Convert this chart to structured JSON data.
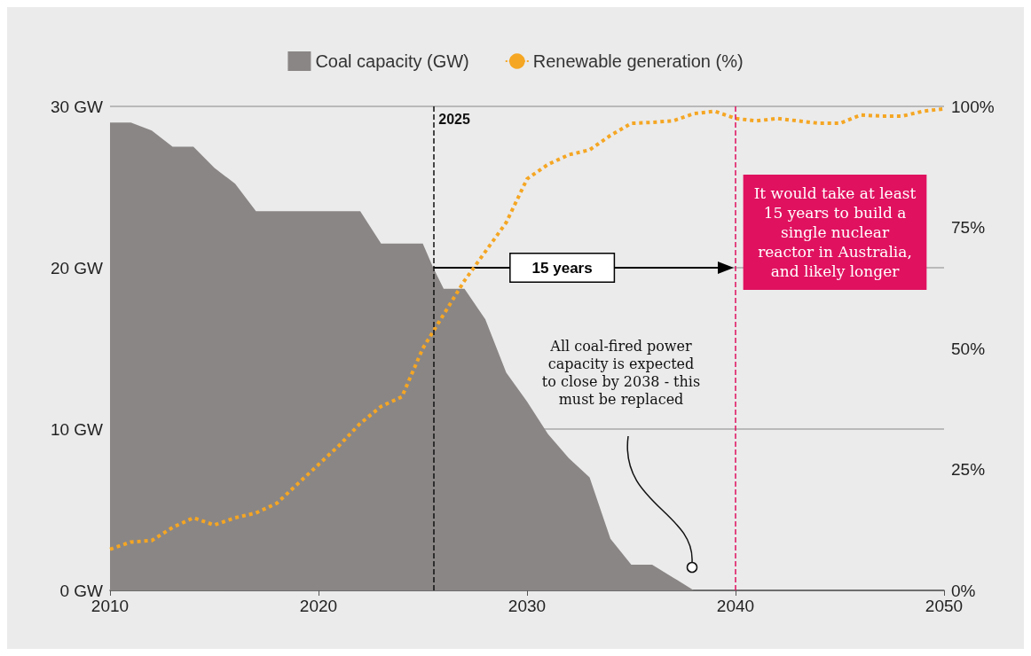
{
  "chart_data": {
    "type": "area",
    "legend": "top",
    "grid": "y",
    "xlim": [
      2010,
      2050
    ],
    "xticks": [
      2010,
      2020,
      2030,
      2040,
      2050
    ],
    "ylim": [
      0,
      30
    ],
    "yticks": [
      {
        "value": 0,
        "label": "0 GW"
      },
      {
        "value": 10,
        "label": "10 GW"
      },
      {
        "value": 20,
        "label": "20 GW"
      },
      {
        "value": 30,
        "label": "30 GW"
      }
    ],
    "y2lim": [
      0,
      100
    ],
    "y2ticks": [
      {
        "value": 0,
        "label": "0%"
      },
      {
        "value": 25,
        "label": "25%"
      },
      {
        "value": 50,
        "label": "50%"
      },
      {
        "value": 75,
        "label": "75%"
      },
      {
        "value": 100,
        "label": "100%"
      }
    ],
    "series": [
      {
        "name": "Coal capacity (GW)",
        "color": "#8a8685",
        "x": [
          2010,
          2011,
          2012,
          2013,
          2014,
          2015,
          2016,
          2017,
          2018,
          2019,
          2020,
          2021,
          2022,
          2023,
          2024,
          2025,
          2025.5,
          2026,
          2027,
          2028,
          2029,
          2030,
          2031,
          2032,
          2033,
          2034,
          2035,
          2036,
          2037,
          2038,
          2040,
          2045,
          2050
        ],
        "values": [
          29,
          29,
          28.5,
          27.5,
          27.5,
          26.2,
          25.2,
          23.5,
          23.5,
          23.5,
          23.5,
          23.5,
          23.5,
          21.5,
          21.5,
          21.5,
          20,
          18.7,
          18.7,
          16.8,
          13.5,
          11.7,
          9.7,
          8.2,
          7,
          3.2,
          1.6,
          1.6,
          0.8,
          0,
          0,
          0,
          0
        ]
      },
      {
        "name": "Renewable generation (%)",
        "type": "line",
        "axis": "y2",
        "color": "#f5a623",
        "line_style": "dotted",
        "marker": "none",
        "x": [
          2010,
          2011,
          2012,
          2013,
          2014,
          2015,
          2016,
          2017,
          2018,
          2019,
          2020,
          2021,
          2022,
          2023,
          2024,
          2025,
          2026,
          2027,
          2028,
          2029,
          2030,
          2031,
          2032,
          2033,
          2034,
          2035,
          2036,
          2037,
          2038,
          2039,
          2040,
          2041,
          2042,
          2043,
          2044,
          2045,
          2046,
          2047,
          2048,
          2049,
          2050
        ],
        "values": [
          8.5,
          10,
          10.3,
          13,
          15,
          13.5,
          15,
          16,
          18,
          22,
          26,
          30,
          34.5,
          38,
          40,
          50,
          57,
          64,
          70,
          76,
          85,
          88,
          90,
          91,
          94,
          96.5,
          96.7,
          97,
          98.5,
          99,
          97.5,
          97,
          97.5,
          97,
          96.5,
          96.5,
          98.2,
          98,
          98,
          99,
          99.5
        ]
      }
    ],
    "ref_lines": [
      {
        "axis": "x",
        "value": 2025.5,
        "label": "2025",
        "color": "#111111",
        "line_style": "dashed"
      },
      {
        "axis": "x",
        "value": 2040,
        "color": "#e0115f",
        "line_style": "dashed"
      }
    ],
    "annotations": [
      "15 years",
      "It would take at least\n15 years to build a\nsingle nuclear\nreactor in Australia,\nand likely longer",
      "All coal-fired power\ncapacity is expected\nto close by 2038 - this\nmust be replaced"
    ]
  }
}
